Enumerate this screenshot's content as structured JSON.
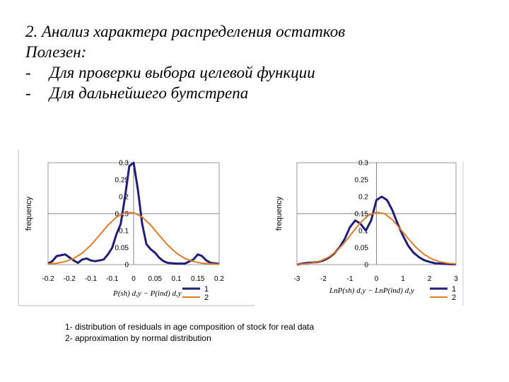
{
  "heading": {
    "line1": "2. Анализ характера распределения остатков",
    "line2": "Полезен:",
    "bullets": [
      {
        "dash": "-",
        "text": "Для проверки выбора целевой функции"
      },
      {
        "dash": "-",
        "text": "Для дальнейшего бутстрепа"
      }
    ]
  },
  "colors": {
    "series1": "#1f1f7a",
    "series2": "#e07b28",
    "gridline": "#808080"
  },
  "caption": {
    "line1": "1- distribution of residuals in age composition of stock for real data",
    "line2": "2- approximation by normal distribution"
  },
  "chart_data": [
    {
      "type": "line",
      "ylabel": "frequency",
      "xlabel": "P(sh) d,y − P(ind) d,y",
      "xlim": [
        -0.2,
        0.2
      ],
      "ylim": [
        0,
        0.3
      ],
      "x_ticks": [
        "-0.2",
        "-0.2",
        "-0.1",
        "-0.1",
        "0",
        "0.05",
        "0.1",
        "0.15",
        "0.2"
      ],
      "y_ticks": [
        "0",
        "0.05",
        "0.1",
        "0.15",
        "0.2",
        "0.25",
        "0.3"
      ],
      "series": [
        {
          "name": "1",
          "x": [
            -0.2,
            -0.19,
            -0.18,
            -0.16,
            -0.14,
            -0.13,
            -0.12,
            -0.11,
            -0.1,
            -0.09,
            -0.08,
            -0.07,
            -0.06,
            -0.05,
            -0.04,
            -0.03,
            -0.02,
            -0.01,
            0,
            0.01,
            0.02,
            0.03,
            0.04,
            0.05,
            0.06,
            0.07,
            0.08,
            0.1,
            0.12,
            0.14,
            0.15,
            0.16,
            0.17,
            0.18,
            0.2
          ],
          "y": [
            0.003,
            0.01,
            0.025,
            0.03,
            0.012,
            0.005,
            0.015,
            0.018,
            0.012,
            0.01,
            0.012,
            0.015,
            0.03,
            0.05,
            0.09,
            0.12,
            0.2,
            0.29,
            0.3,
            0.22,
            0.12,
            0.06,
            0.045,
            0.035,
            0.02,
            0.01,
            0.005,
            0.003,
            0.003,
            0.015,
            0.03,
            0.025,
            0.012,
            0.005,
            0.002
          ]
        },
        {
          "name": "2",
          "x": [
            -0.2,
            -0.18,
            -0.16,
            -0.14,
            -0.12,
            -0.1,
            -0.08,
            -0.06,
            -0.04,
            -0.02,
            0,
            0.02,
            0.04,
            0.06,
            0.08,
            0.1,
            0.12,
            0.14,
            0.16,
            0.18,
            0.2
          ],
          "y": [
            0.002,
            0.004,
            0.009,
            0.018,
            0.034,
            0.057,
            0.086,
            0.116,
            0.14,
            0.153,
            0.153,
            0.14,
            0.116,
            0.086,
            0.057,
            0.034,
            0.018,
            0.009,
            0.004,
            0.002,
            0.001
          ]
        }
      ],
      "legend": "bottom-right",
      "grid": true
    },
    {
      "type": "line",
      "ylabel": "frequency",
      "xlabel": "LnP(sh) d,y − LnP(ind) d,y",
      "xlim": [
        -3,
        3
      ],
      "ylim": [
        0,
        0.3
      ],
      "x_ticks": [
        "-3",
        "-2",
        "-1",
        "0",
        "1",
        "2",
        "3"
      ],
      "y_ticks": [
        "0",
        "0.05",
        "0.1",
        "0.15",
        "0.2",
        "0.25",
        "0.3"
      ],
      "series": [
        {
          "name": "1",
          "x": [
            -3,
            -2.8,
            -2.6,
            -2.4,
            -2.2,
            -2,
            -1.8,
            -1.6,
            -1.4,
            -1.2,
            -1,
            -0.8,
            -0.6,
            -0.4,
            -0.2,
            0,
            0.2,
            0.4,
            0.6,
            0.8,
            1,
            1.2,
            1.4,
            1.6,
            1.8,
            2,
            2.2,
            2.4,
            2.6,
            2.8,
            3
          ],
          "y": [
            0,
            0.003,
            0.005,
            0.006,
            0.008,
            0.012,
            0.02,
            0.032,
            0.05,
            0.075,
            0.11,
            0.13,
            0.12,
            0.1,
            0.13,
            0.19,
            0.2,
            0.19,
            0.16,
            0.12,
            0.085,
            0.055,
            0.035,
            0.022,
            0.013,
            0.008,
            0.004,
            0.003,
            0.002,
            0.001,
            0.001
          ]
        },
        {
          "name": "2",
          "x": [
            -3,
            -2.7,
            -2.4,
            -2.1,
            -1.8,
            -1.5,
            -1.2,
            -0.9,
            -0.6,
            -0.3,
            0,
            0.3,
            0.6,
            0.9,
            1.2,
            1.5,
            1.8,
            2.1,
            2.4,
            2.7,
            3
          ],
          "y": [
            0.001,
            0.002,
            0.005,
            0.011,
            0.022,
            0.04,
            0.065,
            0.095,
            0.124,
            0.145,
            0.154,
            0.15,
            0.132,
            0.105,
            0.076,
            0.05,
            0.03,
            0.016,
            0.008,
            0.004,
            0.002
          ]
        }
      ],
      "legend": "bottom-right",
      "grid": true
    }
  ]
}
